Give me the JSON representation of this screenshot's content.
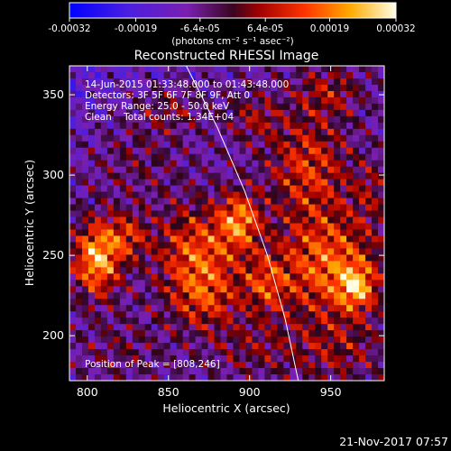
{
  "chart_data": {
    "type": "heatmap",
    "title": "Reconstructed RHESSI Image",
    "xlabel": "Heliocentric X (arcsec)",
    "ylabel": "Heliocentric Y (arcsec)",
    "xlim": [
      789,
      983
    ],
    "ylim": [
      172,
      368
    ],
    "x_ticks": [
      800,
      850,
      900,
      950
    ],
    "y_ticks": [
      200,
      250,
      300,
      350
    ],
    "colorbar": {
      "ticks": [
        -0.00032,
        -0.00019,
        -6.4e-05,
        6.4e-05,
        0.00019,
        0.00032
      ],
      "tick_labels": [
        "-0.00032",
        "-0.00019",
        "-6.4e-05",
        "6.4e-05",
        "0.00019",
        "0.00032"
      ],
      "unit_label": "(photons cm⁻² s⁻¹ asec⁻²)",
      "range": [
        -0.00032,
        0.00032
      ]
    },
    "annotations": [
      "14-Jun-2015 01:33:48.000 to 01:43:48.000",
      "Detectors: 3F 5F 6F 7F 8F 9F, Att 0",
      "Energy Range: 25.0 - 50.0 keV",
      "Clean    Total counts: 1.34E+04"
    ],
    "peak_label": "Position of Peak = [808,246]",
    "peak": [
      808,
      246
    ],
    "limb_curve": [
      [
        861,
        368
      ],
      [
        880,
        330
      ],
      [
        897,
        290
      ],
      [
        911,
        250
      ],
      [
        922,
        210
      ],
      [
        930,
        172
      ]
    ],
    "sources": [
      {
        "x": 806,
        "y": 248,
        "sx": 10,
        "sy": 16,
        "amp": 0.00032
      },
      {
        "x": 825,
        "y": 262,
        "sx": 9,
        "sy": 10,
        "amp": 0.00016
      },
      {
        "x": 868,
        "y": 252,
        "sx": 18,
        "sy": 20,
        "amp": 0.00022
      },
      {
        "x": 894,
        "y": 272,
        "sx": 9,
        "sy": 12,
        "amp": 0.00024
      },
      {
        "x": 872,
        "y": 222,
        "sx": 15,
        "sy": 14,
        "amp": 0.00015
      },
      {
        "x": 910,
        "y": 232,
        "sx": 10,
        "sy": 13,
        "amp": 0.00016
      },
      {
        "x": 948,
        "y": 244,
        "sx": 22,
        "sy": 24,
        "amp": 0.00024
      },
      {
        "x": 966,
        "y": 230,
        "sx": 8,
        "sy": 10,
        "amp": 0.00022
      },
      {
        "x": 936,
        "y": 306,
        "sx": 17,
        "sy": 22,
        "amp": 0.00018
      },
      {
        "x": 948,
        "y": 352,
        "sx": 14,
        "sy": 11,
        "amp": 0.00012
      },
      {
        "x": 903,
        "y": 336,
        "sx": 12,
        "sy": 10,
        "amp": 0.00011
      },
      {
        "x": 830,
        "y": 312,
        "sx": 20,
        "sy": 18,
        "amp": 7e-05
      },
      {
        "x": 851,
        "y": 341,
        "sx": 14,
        "sy": 10,
        "amp": 0.0001
      },
      {
        "x": 822,
        "y": 192,
        "sx": 18,
        "sy": 14,
        "amp": 6e-05
      },
      {
        "x": 952,
        "y": 190,
        "sx": 22,
        "sy": 14,
        "amp": 0.0001
      },
      {
        "x": 900,
        "y": 192,
        "sx": 18,
        "sy": 12,
        "amp": 8e-05
      },
      {
        "x": 975,
        "y": 290,
        "sx": 8,
        "sy": 14,
        "amp": 9e-05
      }
    ],
    "background_level": -8e-05,
    "ripple_amplitude": 9e-05,
    "grid": false
  },
  "footer_date": "21-Nov-2017 07:57"
}
